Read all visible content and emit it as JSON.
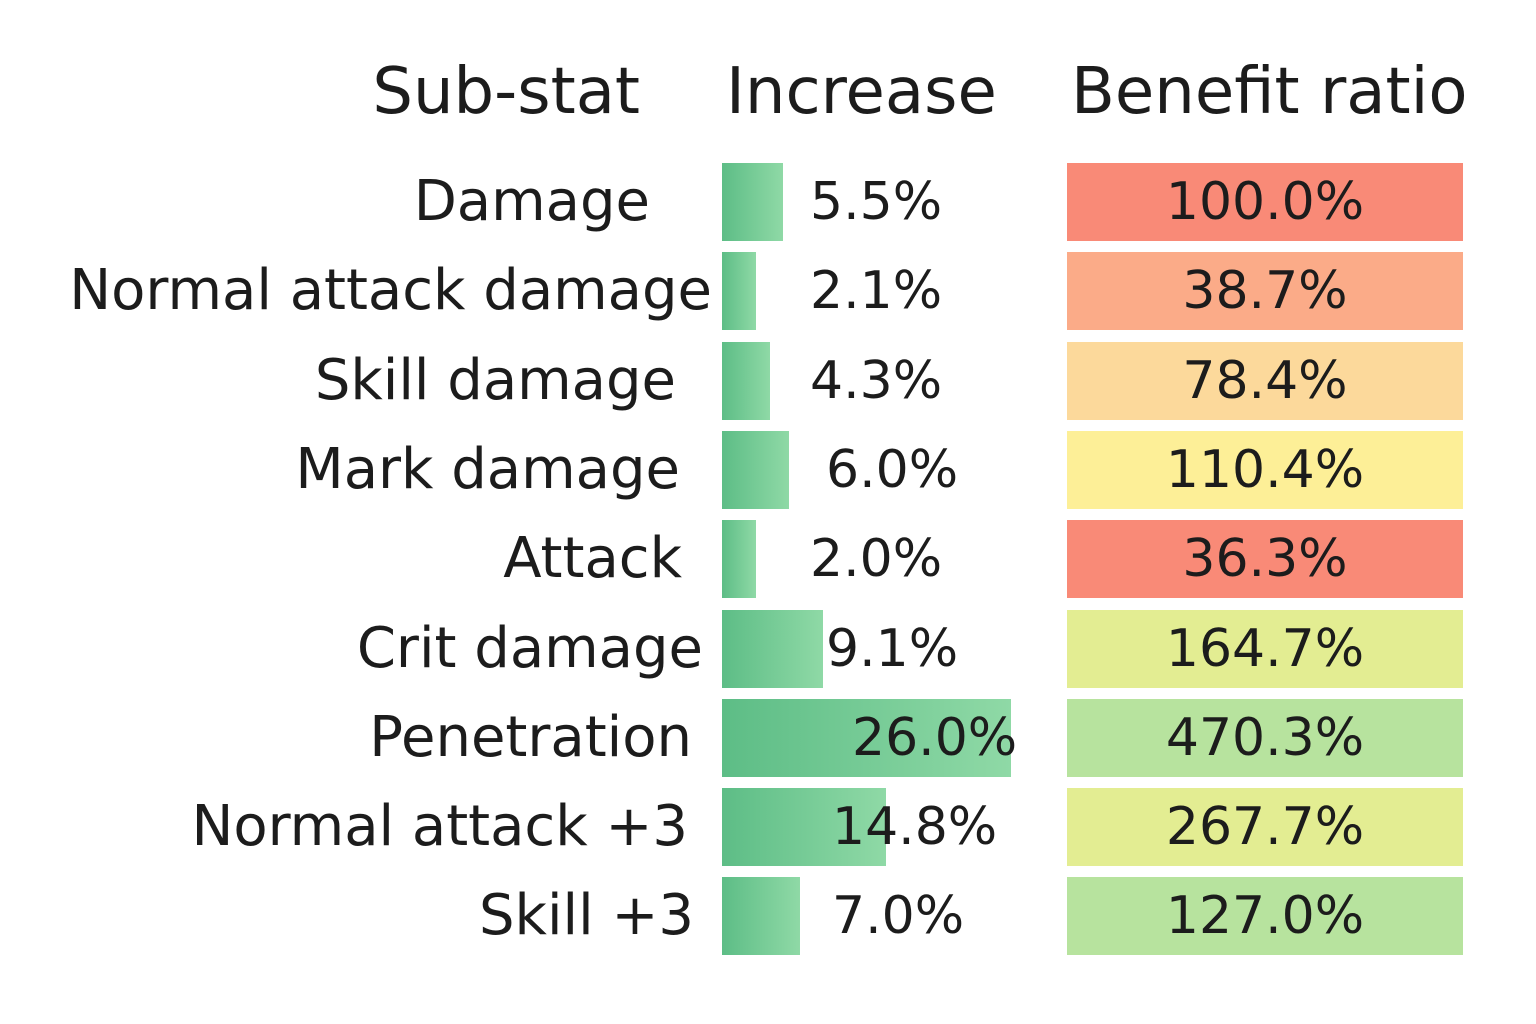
{
  "chart_data": {
    "type": "table",
    "columns": [
      "Sub-stat",
      "Increase",
      "Benefit ratio"
    ],
    "rows": [
      {
        "substat": "Damage",
        "increase": 5.5,
        "increase_label": "5.5%",
        "benefit": 100.0,
        "benefit_label": "100.0%",
        "benefit_color": "#f98a77"
      },
      {
        "substat": "Normal attack damage",
        "increase": 2.1,
        "increase_label": "2.1%",
        "benefit": 38.7,
        "benefit_label": "38.7%",
        "benefit_color": "#fbab88"
      },
      {
        "substat": "Skill damage",
        "increase": 4.3,
        "increase_label": "4.3%",
        "benefit": 78.4,
        "benefit_label": "78.4%",
        "benefit_color": "#fcd99b"
      },
      {
        "substat": "Mark damage",
        "increase": 6.0,
        "increase_label": "6.0%",
        "benefit": 110.4,
        "benefit_label": "110.4%",
        "benefit_color": "#fdef97"
      },
      {
        "substat": "Attack",
        "increase": 2.0,
        "increase_label": "2.0%",
        "benefit": 36.3,
        "benefit_label": "36.3%",
        "benefit_color": "#f98a77"
      },
      {
        "substat": "Crit damage",
        "increase": 9.1,
        "increase_label": "9.1%",
        "benefit": 164.7,
        "benefit_label": "164.7%",
        "benefit_color": "#e3ed92"
      },
      {
        "substat": "Penetration",
        "increase": 26.0,
        "increase_label": "26.0%",
        "benefit": 470.3,
        "benefit_label": "470.3%",
        "benefit_color": "#b7e39e"
      },
      {
        "substat": "Normal attack +3",
        "increase": 14.8,
        "increase_label": "14.8%",
        "benefit": 267.7,
        "benefit_label": "267.7%",
        "benefit_color": "#e3ed92"
      },
      {
        "substat": "Skill +3",
        "increase": 7.0,
        "increase_label": "7.0%",
        "benefit": 127.0,
        "benefit_label": "127.0%",
        "benefit_color": "#b7e39e"
      }
    ],
    "bar_color_start": "#5dbd86",
    "bar_color_end": "#8fd9a6"
  }
}
